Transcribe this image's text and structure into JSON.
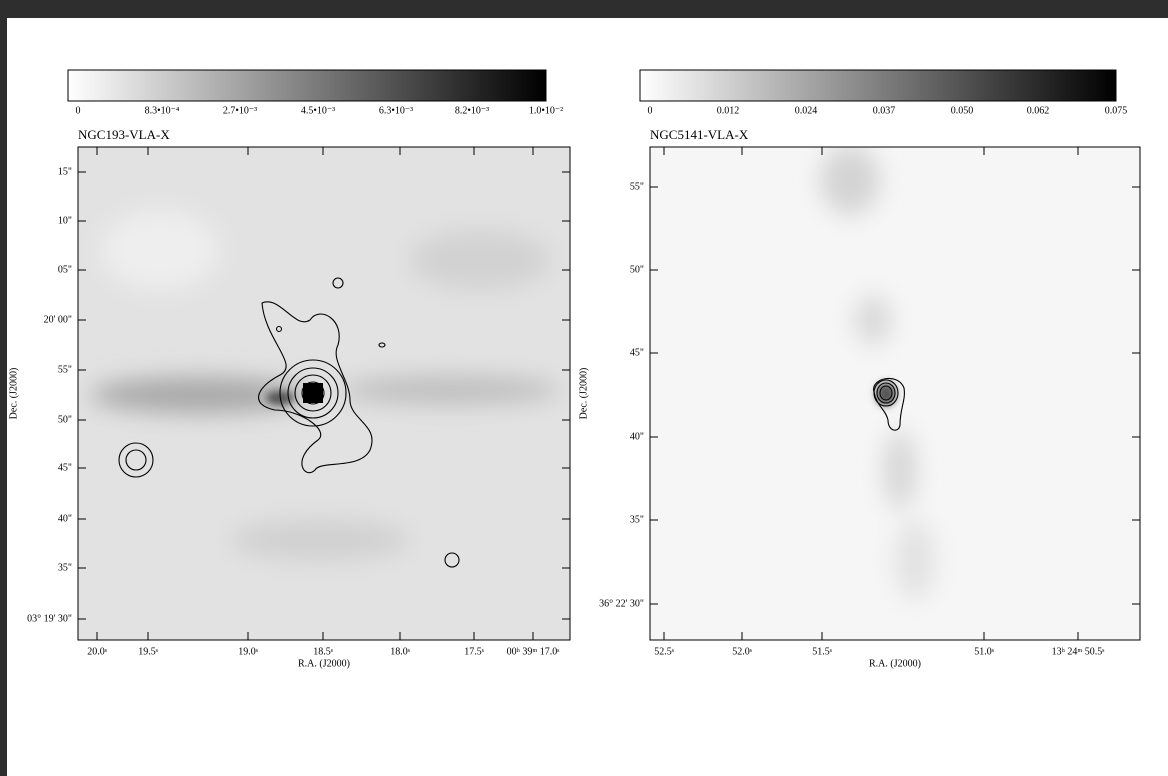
{
  "panels": [
    {
      "title": "NGC193-VLA-X",
      "colorbar_labels": [
        "0",
        "8.3•10⁻⁴",
        "2.7•10⁻³",
        "4.5•10⁻³",
        "6.3•10⁻³",
        "8.2•10⁻³",
        "1.0•10⁻²"
      ],
      "y_label": "Dec. (J2000)",
      "y_ticks": [
        "15\"",
        "10\"",
        "05\"",
        "20' 00\"",
        "55\"",
        "50\"",
        "45\"",
        "40\"",
        "35\"",
        "03° 19' 30\""
      ],
      "x_label": "R.A. (J2000)",
      "x_ticks": [
        "20.0ˢ",
        "19.5ˢ",
        "19.0ˢ",
        "18.5ˢ",
        "18.0ˢ",
        "17.5ˢ",
        "00ʰ 39ᵐ 17.0ˢ"
      ]
    },
    {
      "title": "NGC5141-VLA-X",
      "colorbar_labels": [
        "0",
        "0.012",
        "0.024",
        "0.037",
        "0.050",
        "0.062",
        "0.075"
      ],
      "y_label": "Dec. (J2000)",
      "y_ticks": [
        "55\"",
        "50\"",
        "45\"",
        "40\"",
        "35\"",
        "36° 22' 30\""
      ],
      "x_label": "R.A. (J2000)",
      "x_ticks": [
        "52.5ˢ",
        "52.0ˢ",
        "51.5ˢ",
        "51.0ˢ",
        "13ʰ 24ᵐ 50.5ˢ"
      ]
    }
  ]
}
